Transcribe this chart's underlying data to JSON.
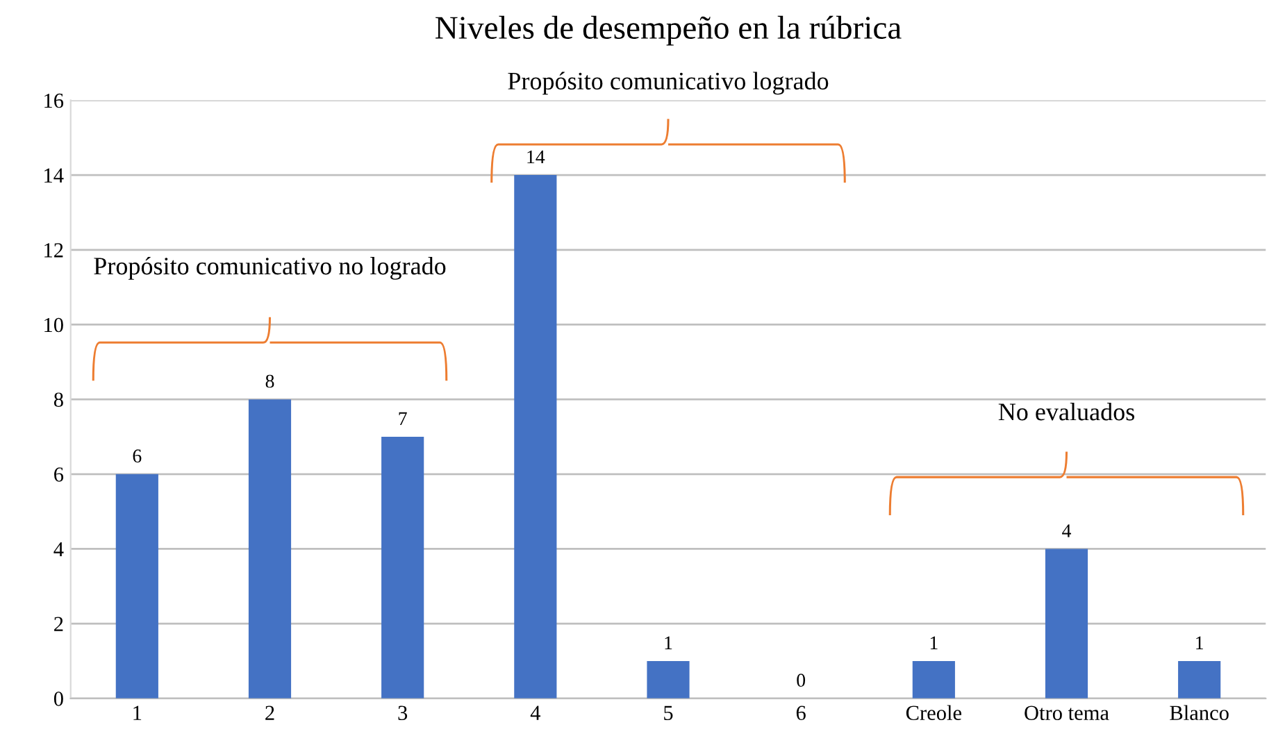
{
  "chart_data": {
    "type": "bar",
    "title": "Niveles de desempeño en la rúbrica",
    "categories": [
      "1",
      "2",
      "3",
      "4",
      "5",
      "6",
      "Creole",
      "Otro tema",
      "Blanco"
    ],
    "values": [
      6,
      8,
      7,
      14,
      1,
      0,
      1,
      4,
      1
    ],
    "color": "#4472c4",
    "ylim": [
      0,
      16
    ],
    "yticks": [
      0,
      2,
      4,
      6,
      8,
      10,
      12,
      14,
      16
    ],
    "grid": "y",
    "data_labels": true,
    "annotations": [
      "Propósito comunicativo no logrado",
      "Propósito comunicativo logrado",
      "No evaluados"
    ]
  }
}
